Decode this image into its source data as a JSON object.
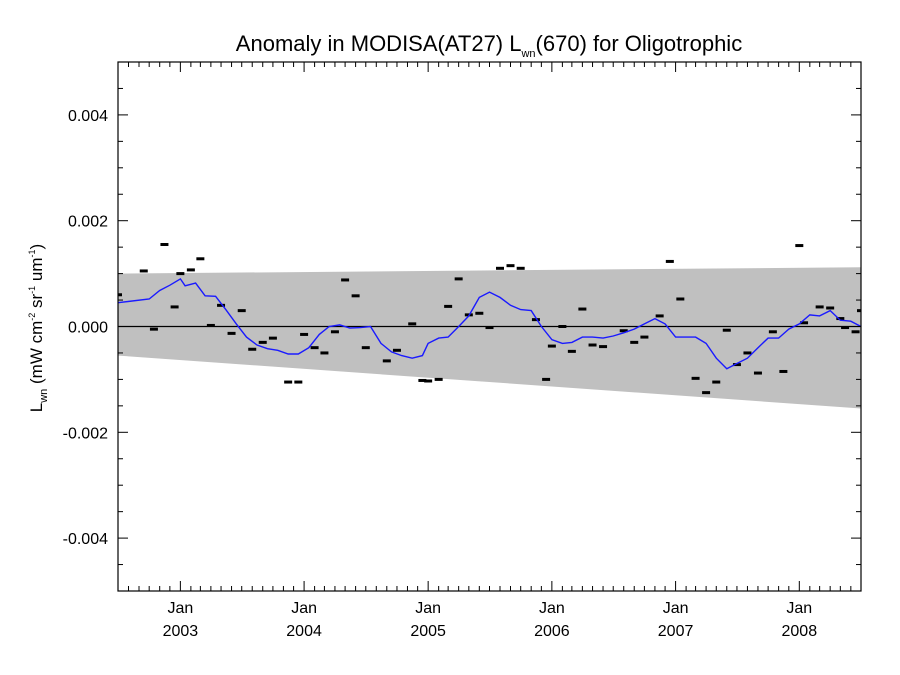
{
  "chart_data": {
    "type": "line",
    "title": {
      "prefix": "Anomaly in MODISA(AT27) L",
      "sub": "wn",
      "suffix": "(670) for Oligotrophic"
    },
    "ylabel": {
      "main": "L",
      "sub": "wn",
      "units_a": " (mW cm",
      "exp_a": "-2",
      "units_b": " sr",
      "exp_b": "-1",
      "units_c": " um",
      "exp_c": "-1",
      "units_d": ")"
    },
    "xlim": [
      "2002-07-01",
      "2008-07-01"
    ],
    "ylim": [
      -0.005,
      0.005
    ],
    "yticks": [
      {
        "value": -0.004,
        "label": "-0.004"
      },
      {
        "value": -0.002,
        "label": "-0.002"
      },
      {
        "value": 0.0,
        "label": "0.000"
      },
      {
        "value": 0.002,
        "label": "0.002"
      },
      {
        "value": 0.004,
        "label": "0.004"
      }
    ],
    "xticks": [
      {
        "date": "2003-01-01",
        "month": "Jan",
        "year": "2003"
      },
      {
        "date": "2004-01-01",
        "month": "Jan",
        "year": "2004"
      },
      {
        "date": "2005-01-01",
        "month": "Jan",
        "year": "2005"
      },
      {
        "date": "2006-01-01",
        "month": "Jan",
        "year": "2006"
      },
      {
        "date": "2007-01-01",
        "month": "Jan",
        "year": "2007"
      },
      {
        "date": "2008-01-01",
        "month": "Jan",
        "year": "2008"
      }
    ],
    "band": {
      "color": "#c0c0c0",
      "upper": [
        [
          "2002-07-01",
          0.001
        ],
        [
          "2008-07-01",
          0.00112
        ]
      ],
      "lower": [
        [
          "2002-07-01",
          -0.00055
        ],
        [
          "2008-07-01",
          -0.00155
        ]
      ]
    },
    "zero_line": true,
    "series": [
      {
        "type": "scatter",
        "marker": "dash",
        "color": "#000000",
        "points": [
          [
            "2002-07-01",
            0.0006
          ],
          [
            "2002-09-15",
            0.00105
          ],
          [
            "2002-10-15",
            -5e-05
          ],
          [
            "2002-11-15",
            0.00155
          ],
          [
            "2002-12-15",
            0.00037
          ],
          [
            "2003-01-01",
            0.001
          ],
          [
            "2003-02-01",
            0.00107
          ],
          [
            "2003-03-01",
            0.00128
          ],
          [
            "2003-04-01",
            2e-05
          ],
          [
            "2003-05-01",
            0.0004
          ],
          [
            "2003-06-01",
            -0.00013
          ],
          [
            "2003-07-01",
            0.0003
          ],
          [
            "2003-08-01",
            -0.00043
          ],
          [
            "2003-09-01",
            -0.0003
          ],
          [
            "2003-10-01",
            -0.00022
          ],
          [
            "2003-11-15",
            -0.00105
          ],
          [
            "2003-12-15",
            -0.00105
          ],
          [
            "2004-01-01",
            -0.00015
          ],
          [
            "2004-02-01",
            -0.0004
          ],
          [
            "2004-03-01",
            -0.0005
          ],
          [
            "2004-04-01",
            -0.0001
          ],
          [
            "2004-05-01",
            0.00088
          ],
          [
            "2004-06-01",
            0.00058
          ],
          [
            "2004-07-01",
            -0.0004
          ],
          [
            "2004-09-01",
            -0.00065
          ],
          [
            "2004-10-01",
            -0.00045
          ],
          [
            "2004-11-15",
            5e-05
          ],
          [
            "2004-12-15",
            -0.00102
          ],
          [
            "2005-01-01",
            -0.00103
          ],
          [
            "2005-02-01",
            -0.001
          ],
          [
            "2005-03-01",
            0.00038
          ],
          [
            "2005-04-01",
            0.0009
          ],
          [
            "2005-05-01",
            0.00022
          ],
          [
            "2005-06-01",
            0.00025
          ],
          [
            "2005-07-01",
            -2e-05
          ],
          [
            "2005-08-01",
            0.0011
          ],
          [
            "2005-09-01",
            0.00115
          ],
          [
            "2005-10-01",
            0.0011
          ],
          [
            "2005-11-15",
            0.00013
          ],
          [
            "2005-12-15",
            -0.001
          ],
          [
            "2006-01-01",
            -0.00037
          ],
          [
            "2006-02-01",
            0.0
          ],
          [
            "2006-03-01",
            -0.00047
          ],
          [
            "2006-04-01",
            0.00033
          ],
          [
            "2006-05-01",
            -0.00035
          ],
          [
            "2006-06-01",
            -0.00038
          ],
          [
            "2006-08-01",
            -8e-05
          ],
          [
            "2006-09-01",
            -0.0003
          ],
          [
            "2006-10-01",
            -0.0002
          ],
          [
            "2006-11-15",
            0.0002
          ],
          [
            "2006-12-15",
            0.00123
          ],
          [
            "2007-01-15",
            0.00052
          ],
          [
            "2007-03-01",
            -0.00098
          ],
          [
            "2007-04-01",
            -0.00125
          ],
          [
            "2007-05-01",
            -0.00105
          ],
          [
            "2007-06-01",
            -7e-05
          ],
          [
            "2007-07-01",
            -0.00072
          ],
          [
            "2007-08-01",
            -0.0005
          ],
          [
            "2007-09-01",
            -0.00088
          ],
          [
            "2007-10-15",
            -0.0001
          ],
          [
            "2007-11-15",
            -0.00085
          ],
          [
            "2008-01-01",
            0.00153
          ],
          [
            "2008-01-15",
            7e-05
          ],
          [
            "2008-03-01",
            0.00037
          ],
          [
            "2008-04-01",
            0.00035
          ],
          [
            "2008-05-01",
            0.00015
          ],
          [
            "2008-05-15",
            -2e-05
          ],
          [
            "2008-06-15",
            -0.0001
          ],
          [
            "2008-07-01",
            0.0003
          ]
        ]
      },
      {
        "type": "line",
        "color": "#1a1aff",
        "points": [
          [
            "2002-07-01",
            0.00045
          ],
          [
            "2002-10-01",
            0.00052
          ],
          [
            "2002-11-01",
            0.00068
          ],
          [
            "2002-12-01",
            0.00078
          ],
          [
            "2003-01-01",
            0.0009
          ],
          [
            "2003-01-15",
            0.00077
          ],
          [
            "2003-02-15",
            0.00082
          ],
          [
            "2003-03-15",
            0.00058
          ],
          [
            "2003-04-15",
            0.00057
          ],
          [
            "2003-05-15",
            0.00032
          ],
          [
            "2003-06-15",
            5e-05
          ],
          [
            "2003-07-15",
            -0.0002
          ],
          [
            "2003-08-15",
            -0.00035
          ],
          [
            "2003-09-15",
            -0.00042
          ],
          [
            "2003-10-15",
            -0.00045
          ],
          [
            "2003-11-15",
            -0.00052
          ],
          [
            "2003-12-15",
            -0.00052
          ],
          [
            "2004-01-15",
            -0.0004
          ],
          [
            "2004-02-15",
            -0.00015
          ],
          [
            "2004-03-15",
            0.0
          ],
          [
            "2004-04-15",
            3e-05
          ],
          [
            "2004-05-15",
            -3e-05
          ],
          [
            "2004-06-15",
            -2e-05
          ],
          [
            "2004-07-15",
            0.0
          ],
          [
            "2004-08-15",
            -0.00032
          ],
          [
            "2004-09-15",
            -0.00048
          ],
          [
            "2004-10-15",
            -0.00055
          ],
          [
            "2004-11-15",
            -0.0006
          ],
          [
            "2004-12-15",
            -0.00055
          ],
          [
            "2005-01-01",
            -0.00032
          ],
          [
            "2005-02-01",
            -0.00022
          ],
          [
            "2005-03-01",
            -0.0002
          ],
          [
            "2005-04-01",
            0.0
          ],
          [
            "2005-05-01",
            0.0002
          ],
          [
            "2005-06-01",
            0.00055
          ],
          [
            "2005-07-01",
            0.00065
          ],
          [
            "2005-08-01",
            0.00055
          ],
          [
            "2005-09-01",
            0.0004
          ],
          [
            "2005-10-01",
            0.00032
          ],
          [
            "2005-11-01",
            0.0003
          ],
          [
            "2005-12-01",
            0.0
          ],
          [
            "2006-01-01",
            -0.00025
          ],
          [
            "2006-02-01",
            -0.00032
          ],
          [
            "2006-03-01",
            -0.0003
          ],
          [
            "2006-04-01",
            -0.0002
          ],
          [
            "2006-05-01",
            -0.0002
          ],
          [
            "2006-06-01",
            -0.00022
          ],
          [
            "2006-07-01",
            -0.00018
          ],
          [
            "2006-08-01",
            -0.00012
          ],
          [
            "2006-09-01",
            -5e-05
          ],
          [
            "2006-10-01",
            5e-05
          ],
          [
            "2006-11-01",
            0.00015
          ],
          [
            "2006-12-01",
            5e-05
          ],
          [
            "2007-01-01",
            -0.0002
          ],
          [
            "2007-03-01",
            -0.0002
          ],
          [
            "2007-04-01",
            -0.00032
          ],
          [
            "2007-05-01",
            -0.0006
          ],
          [
            "2007-06-01",
            -0.0008
          ],
          [
            "2007-07-01",
            -0.0007
          ],
          [
            "2007-08-01",
            -0.0006
          ],
          [
            "2007-09-01",
            -0.0004
          ],
          [
            "2007-10-01",
            -0.00022
          ],
          [
            "2007-11-01",
            -0.00022
          ],
          [
            "2007-12-01",
            -5e-05
          ],
          [
            "2008-01-01",
            5e-05
          ],
          [
            "2008-02-01",
            0.00022
          ],
          [
            "2008-03-01",
            0.0002
          ],
          [
            "2008-04-01",
            0.0003
          ],
          [
            "2008-05-01",
            0.00012
          ],
          [
            "2008-06-01",
            0.0001
          ],
          [
            "2008-07-01",
            0.0
          ]
        ]
      }
    ]
  }
}
